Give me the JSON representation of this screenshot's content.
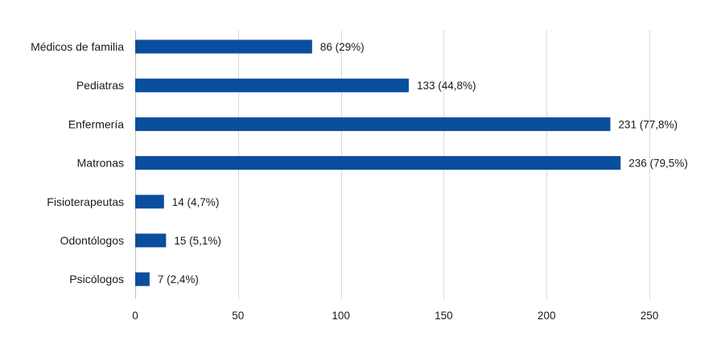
{
  "chart_data": {
    "type": "bar",
    "orientation": "horizontal",
    "title": "",
    "xlabel": "",
    "ylabel": "",
    "categories": [
      "Médicos de familia",
      "Pediatras",
      "Enfermería",
      "Matronas",
      "Fisioterapeutas",
      "Odontólogos",
      "Psicólogos"
    ],
    "values": [
      86,
      133,
      231,
      236,
      14,
      15,
      7
    ],
    "data_labels": [
      "86 (29%)",
      "133 (44,8%)",
      "231 (77,8%)",
      "236 (79,5%)",
      "14 (4,7%)",
      "15 (5,1%)",
      "7 (2,4%)"
    ],
    "xlim": [
      0,
      250
    ],
    "xticks": [
      0,
      50,
      100,
      150,
      200,
      250
    ],
    "xtick_labels": [
      "0",
      "50",
      "100",
      "150",
      "200",
      "250"
    ],
    "grid": "vertical",
    "legend": "none",
    "colors": {
      "bar": "#0b4e9e",
      "grid": "#d9d9d9",
      "axis": "#bfbfbf"
    }
  }
}
